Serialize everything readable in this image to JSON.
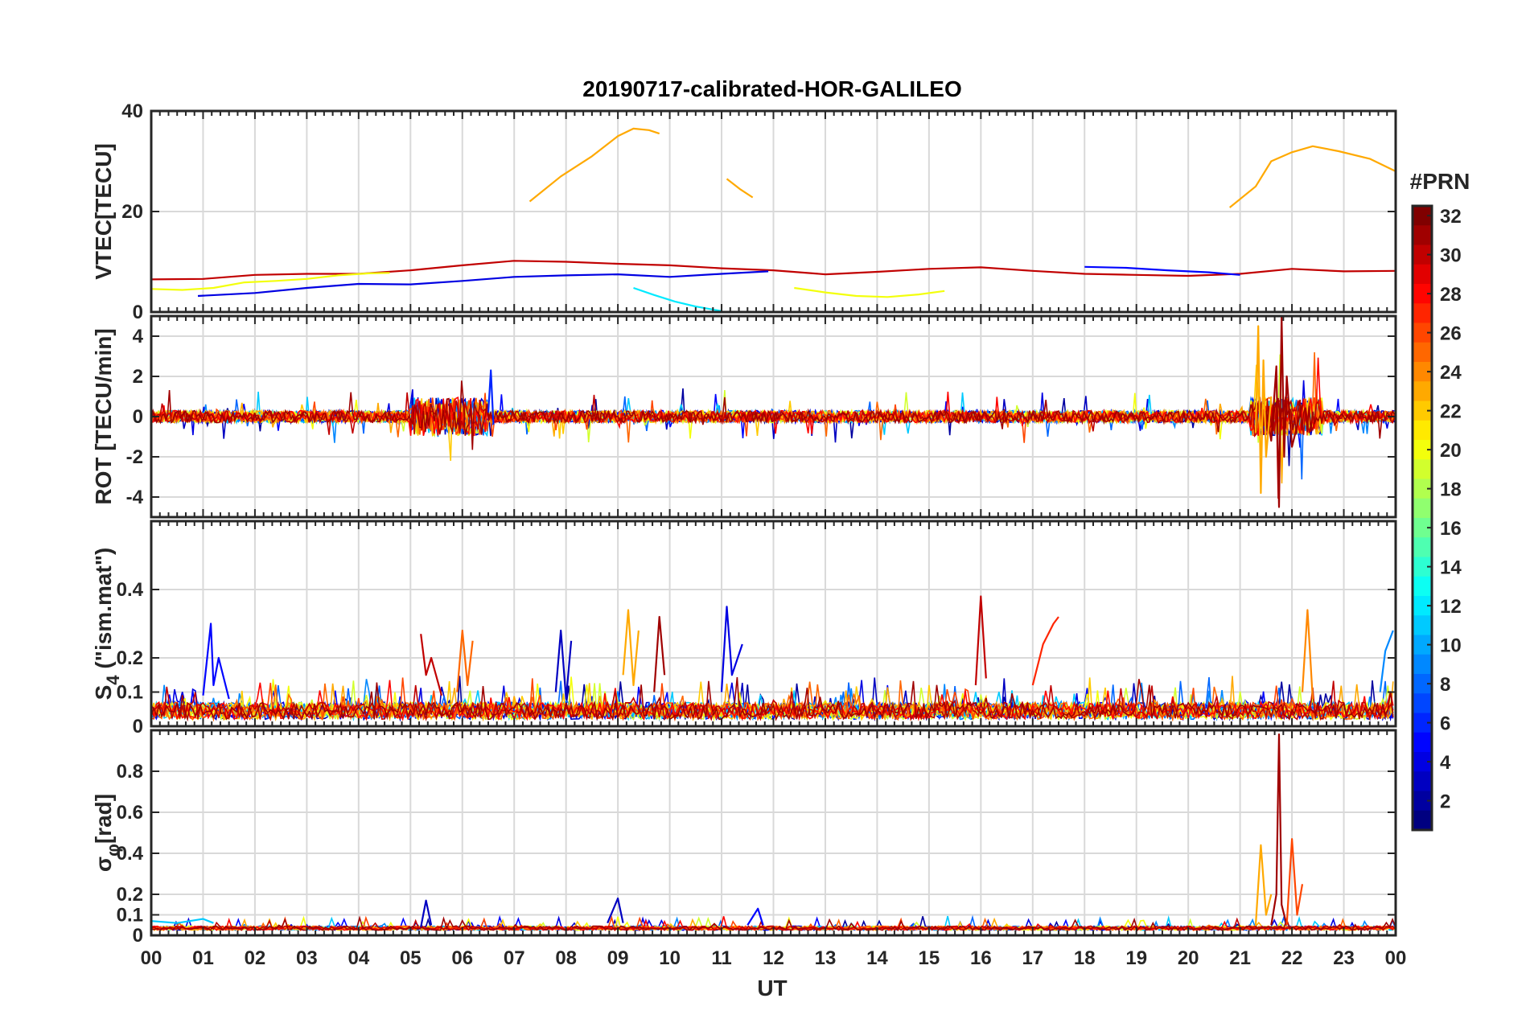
{
  "title": "20190717-calibrated-HOR-GALILEO",
  "xlabel": "UT",
  "x_tick_labels": [
    "00",
    "01",
    "02",
    "03",
    "04",
    "05",
    "06",
    "07",
    "08",
    "09",
    "10",
    "11",
    "12",
    "13",
    "14",
    "15",
    "16",
    "17",
    "18",
    "19",
    "20",
    "21",
    "22",
    "23",
    "00"
  ],
  "colorbar": {
    "title": "#PRN",
    "range": [
      1,
      32
    ],
    "tick_values": [
      2,
      4,
      6,
      8,
      10,
      12,
      14,
      16,
      18,
      20,
      22,
      24,
      26,
      28,
      30,
      32
    ],
    "tick_labels": [
      "2",
      "4",
      "6",
      "8",
      "10",
      "12",
      "14",
      "16",
      "18",
      "20",
      "22",
      "24",
      "26",
      "28",
      "30",
      "32"
    ],
    "colormap": "jet"
  },
  "panels": [
    {
      "id": "vtec",
      "ylabel": "VTEC[TECU]",
      "ylim": [
        0,
        40
      ],
      "y_tick_values": [
        0,
        20,
        40
      ],
      "y_tick_labels": [
        "0",
        "20",
        "40"
      ]
    },
    {
      "id": "rot",
      "ylabel": "ROT [TECU/min]",
      "ylim": [
        -5,
        5
      ],
      "y_tick_values": [
        -4,
        -2,
        0,
        2,
        4
      ],
      "y_tick_labels": [
        "-4",
        "-2",
        "0",
        "2",
        "4"
      ]
    },
    {
      "id": "s4",
      "ylabel": "S",
      "ylabel_sub": "4",
      "ylabel_suffix": " (\"ism.mat\")",
      "ylim": [
        0,
        0.6
      ],
      "y_tick_values": [
        0,
        0.1,
        0.2,
        0.4
      ],
      "y_tick_labels": [
        "0",
        "0.1",
        "0.2",
        "0.4"
      ]
    },
    {
      "id": "sigphi",
      "ylabel": "σ",
      "ylabel_sub": "φ",
      "ylabel_suffix": "[rad]",
      "ylim": [
        0,
        1.0
      ],
      "y_tick_values": [
        0,
        0.1,
        0.2,
        0.4,
        0.6,
        0.8
      ],
      "y_tick_labels": [
        "0",
        "0.1",
        "0.2",
        "0.4",
        "0.6",
        "0.8"
      ]
    }
  ],
  "chart_data": [
    {
      "type": "line",
      "panel": "vtec",
      "xlabel": "UT",
      "ylabel": "VTEC[TECU]",
      "xlim": [
        0,
        24
      ],
      "ylim": [
        0,
        40
      ],
      "series": [
        {
          "prn": 23,
          "x": [
            7.3,
            7.9,
            8.5,
            9.0,
            9.3,
            9.6,
            9.8
          ],
          "y": [
            22,
            27,
            31,
            35,
            36.5,
            36.2,
            35.5
          ]
        },
        {
          "prn": 23,
          "x": [
            11.1,
            11.35,
            11.6
          ],
          "y": [
            26.5,
            24.5,
            22.8
          ]
        },
        {
          "prn": 23,
          "x": [
            20.8,
            21.3,
            21.6,
            22.0,
            22.4,
            22.9,
            23.5,
            24.0
          ],
          "y": [
            20.8,
            25,
            30,
            31.8,
            33,
            32,
            30.5,
            28
          ]
        },
        {
          "prn": 30,
          "x": [
            0,
            1.0,
            2.0,
            3.0,
            4.0,
            5.0,
            6.0,
            7.0,
            8.0,
            9.0,
            10.0,
            11.0,
            12.0,
            13.0,
            14.0,
            15.0,
            16.0,
            17.0,
            18.0,
            19.0,
            20.0,
            21.0,
            22.0,
            23.0,
            24.0
          ],
          "y": [
            6.5,
            6.6,
            7.4,
            7.6,
            7.6,
            8.3,
            9.3,
            10.2,
            10.0,
            9.6,
            9.3,
            8.7,
            8.3,
            7.5,
            8.0,
            8.6,
            8.9,
            8.2,
            7.6,
            7.4,
            7.2,
            7.6,
            8.6,
            8.1,
            8.2
          ]
        },
        {
          "prn": 4,
          "x": [
            0.9,
            2.0,
            3.0,
            4.0,
            5.0,
            6.0,
            7.0,
            8.0,
            9.0,
            10.0,
            11.0,
            11.9
          ],
          "y": [
            3.2,
            3.8,
            4.8,
            5.6,
            5.5,
            6.2,
            7.0,
            7.3,
            7.5,
            7.0,
            7.6,
            8.1
          ]
        },
        {
          "prn": 20,
          "x": [
            0,
            0.6,
            1.2,
            1.8,
            2.4,
            3.0,
            3.6,
            4.2,
            4.6
          ],
          "y": [
            4.6,
            4.4,
            4.8,
            5.9,
            6.2,
            6.6,
            7.3,
            7.7,
            7.8
          ]
        },
        {
          "prn": 12,
          "x": [
            9.3,
            9.7,
            10.1,
            10.5,
            11.0
          ],
          "y": [
            4.8,
            3.4,
            2.1,
            1.1,
            0.2
          ]
        },
        {
          "prn": 20,
          "x": [
            12.4,
            13.0,
            13.6,
            14.2,
            14.8,
            15.3
          ],
          "y": [
            4.8,
            3.9,
            3.2,
            3.0,
            3.5,
            4.2
          ]
        },
        {
          "prn": 5,
          "x": [
            18.0,
            18.8,
            19.6,
            20.4,
            21.0
          ],
          "y": [
            9.0,
            8.8,
            8.3,
            7.9,
            7.4
          ]
        }
      ]
    },
    {
      "type": "line",
      "panel": "rot",
      "xlabel": "UT",
      "ylabel": "ROT [TECU/min]",
      "xlim": [
        0,
        24
      ],
      "ylim": [
        -5,
        5
      ],
      "note": "dense noisy traces around 0, peaks near 21.5 UT (PRN 23) and 21.8 UT (PRN 31)",
      "series": [
        {
          "prn": 31,
          "x": [
            21.5,
            21.6,
            21.7,
            21.75,
            21.8,
            21.85,
            21.9,
            22.0,
            22.2
          ],
          "y": [
            0.3,
            -1.2,
            2.5,
            -4.5,
            5.0,
            -2.0,
            2.0,
            -1.5,
            0.6
          ]
        },
        {
          "prn": 23,
          "x": [
            21.3,
            21.35,
            21.4,
            21.45,
            21.5,
            21.6
          ],
          "y": [
            -0.8,
            4.5,
            -3.8,
            2.8,
            -2.0,
            1.0
          ]
        },
        {
          "prn": 6,
          "x": [
            6.5,
            6.55,
            6.6
          ],
          "y": [
            0.2,
            2.3,
            -0.4
          ]
        }
      ]
    },
    {
      "type": "line",
      "panel": "s4",
      "xlabel": "UT",
      "ylabel": "S4 (\"ism.mat\")",
      "xlim": [
        0,
        24
      ],
      "ylim": [
        0,
        0.6
      ],
      "series": [
        {
          "prn": 5,
          "x": [
            1.0,
            1.15,
            1.2,
            1.3,
            1.5
          ],
          "y": [
            0.09,
            0.3,
            0.12,
            0.2,
            0.08
          ]
        },
        {
          "prn": 30,
          "x": [
            5.2,
            5.3,
            5.4,
            5.6
          ],
          "y": [
            0.27,
            0.15,
            0.2,
            0.09
          ]
        },
        {
          "prn": 25,
          "x": [
            5.9,
            6.0,
            6.1,
            6.2
          ],
          "y": [
            0.1,
            0.28,
            0.12,
            0.25
          ]
        },
        {
          "prn": 3,
          "x": [
            7.8,
            7.9,
            8.0,
            8.1
          ],
          "y": [
            0.1,
            0.28,
            0.08,
            0.25
          ]
        },
        {
          "prn": 23,
          "x": [
            9.1,
            9.2,
            9.3,
            9.4
          ],
          "y": [
            0.15,
            0.34,
            0.12,
            0.28
          ]
        },
        {
          "prn": 31,
          "x": [
            9.7,
            9.8,
            9.9
          ],
          "y": [
            0.1,
            0.32,
            0.15
          ]
        },
        {
          "prn": 4,
          "x": [
            11.0,
            11.1,
            11.2,
            11.4
          ],
          "y": [
            0.1,
            0.35,
            0.15,
            0.24
          ]
        },
        {
          "prn": 30,
          "x": [
            15.9,
            16.0,
            16.1
          ],
          "y": [
            0.12,
            0.38,
            0.14
          ]
        },
        {
          "prn": 27,
          "x": [
            17.0,
            17.2,
            17.4,
            17.5
          ],
          "y": [
            0.12,
            0.24,
            0.3,
            0.32
          ]
        },
        {
          "prn": 24,
          "x": [
            22.2,
            22.3,
            22.4
          ],
          "y": [
            0.1,
            0.34,
            0.08
          ]
        },
        {
          "prn": 9,
          "x": [
            23.7,
            23.8,
            23.95
          ],
          "y": [
            0.1,
            0.22,
            0.28
          ]
        }
      ]
    },
    {
      "type": "line",
      "panel": "sigphi",
      "xlabel": "UT",
      "ylabel": "σφ[rad]",
      "xlim": [
        0,
        24
      ],
      "ylim": [
        0,
        1.0
      ],
      "series": [
        {
          "prn": 31,
          "x": [
            21.6,
            21.7,
            21.75,
            21.8,
            21.9
          ],
          "y": [
            0.05,
            0.2,
            0.98,
            0.15,
            0.05
          ]
        },
        {
          "prn": 23,
          "x": [
            21.3,
            21.4,
            21.5,
            21.6
          ],
          "y": [
            0.05,
            0.44,
            0.1,
            0.2
          ]
        },
        {
          "prn": 26,
          "x": [
            21.9,
            22.0,
            22.1,
            22.2
          ],
          "y": [
            0.05,
            0.47,
            0.1,
            0.25
          ]
        },
        {
          "prn": 3,
          "x": [
            5.2,
            5.3,
            5.4
          ],
          "y": [
            0.04,
            0.17,
            0.05
          ]
        },
        {
          "prn": 3,
          "x": [
            8.8,
            9.0,
            9.1
          ],
          "y": [
            0.06,
            0.18,
            0.06
          ]
        },
        {
          "prn": 5,
          "x": [
            11.5,
            11.7,
            11.8
          ],
          "y": [
            0.05,
            0.13,
            0.05
          ]
        },
        {
          "prn": 11,
          "x": [
            0.0,
            0.5,
            1.0,
            1.2
          ],
          "y": [
            0.07,
            0.06,
            0.08,
            0.06
          ]
        }
      ]
    }
  ]
}
